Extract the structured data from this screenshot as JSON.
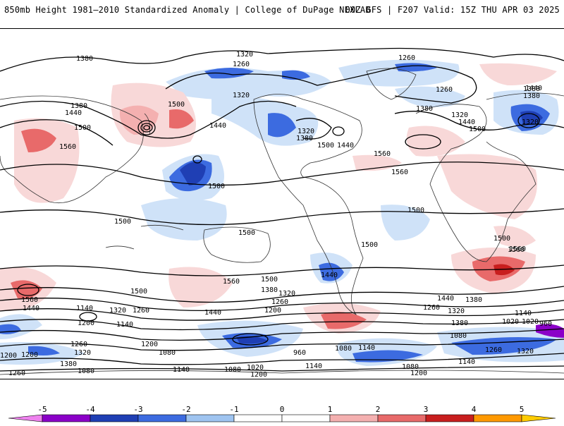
{
  "header": {
    "title_left": "850mb Height 1981–2010 Standardized Anomaly | College of DuPage NEXLAB",
    "title_right": "00Z GFS | F207 Valid: 15Z THU APR 03 2025"
  },
  "colors": {
    "neg5": "#ee82ee",
    "neg4": "#8b00c8",
    "neg3": "#1f3fb4",
    "neg2": "#3c6be0",
    "neg1": "#9fc4f0",
    "neg05": "#cfe2f8",
    "pos05": "#f8d8d8",
    "pos1": "#f4b0b0",
    "pos2": "#e86a6a",
    "pos3": "#c81e1e",
    "pos4": "#ff9900",
    "pos5": "#ffcc00"
  },
  "contour_labels": [
    "1380",
    "1320",
    "1260",
    "1260",
    "1260",
    "1320",
    "1380",
    "1440",
    "1380",
    "1500",
    "1560",
    "1440",
    "1380",
    "1320",
    "1380",
    "1500",
    "1440",
    "1500",
    "1560",
    "1560",
    "1320",
    "1440",
    "1380",
    "1320",
    "1500",
    "1440",
    "1500",
    "1500",
    "1500",
    "1500",
    "1500",
    "1560",
    "1500",
    "1500",
    "1440",
    "1560",
    "1560",
    "1380",
    "1440",
    "1320",
    "1260",
    "1200",
    "1500",
    "1440",
    "1320",
    "1260",
    "1140",
    "1560",
    "1440",
    "1380",
    "1320",
    "1260",
    "1200",
    "1140",
    "1020",
    "960",
    "1200",
    "1080",
    "1200",
    "1140",
    "1260",
    "1320",
    "1380",
    "1200",
    "1140",
    "1080",
    "1020",
    "960",
    "1080",
    "1140",
    "1080",
    "1200",
    "1140",
    "1260",
    "1320",
    "1380",
    "1080",
    "1020",
    "1140",
    "1260",
    "1200",
    "1080"
  ],
  "colorbar": {
    "ticks": [
      "-5",
      "-4",
      "-3",
      "-2",
      "-1",
      "0",
      "1",
      "2",
      "3",
      "4",
      "5"
    ],
    "segment_colors": [
      "#ee82ee",
      "#8b00c8",
      "#1f3fb4",
      "#3c6be0",
      "#9fc4f0",
      "#ffffff",
      "#ffffff",
      "#f4b0b0",
      "#e86a6a",
      "#c81e1e",
      "#ff9900",
      "#ffcc00"
    ]
  }
}
